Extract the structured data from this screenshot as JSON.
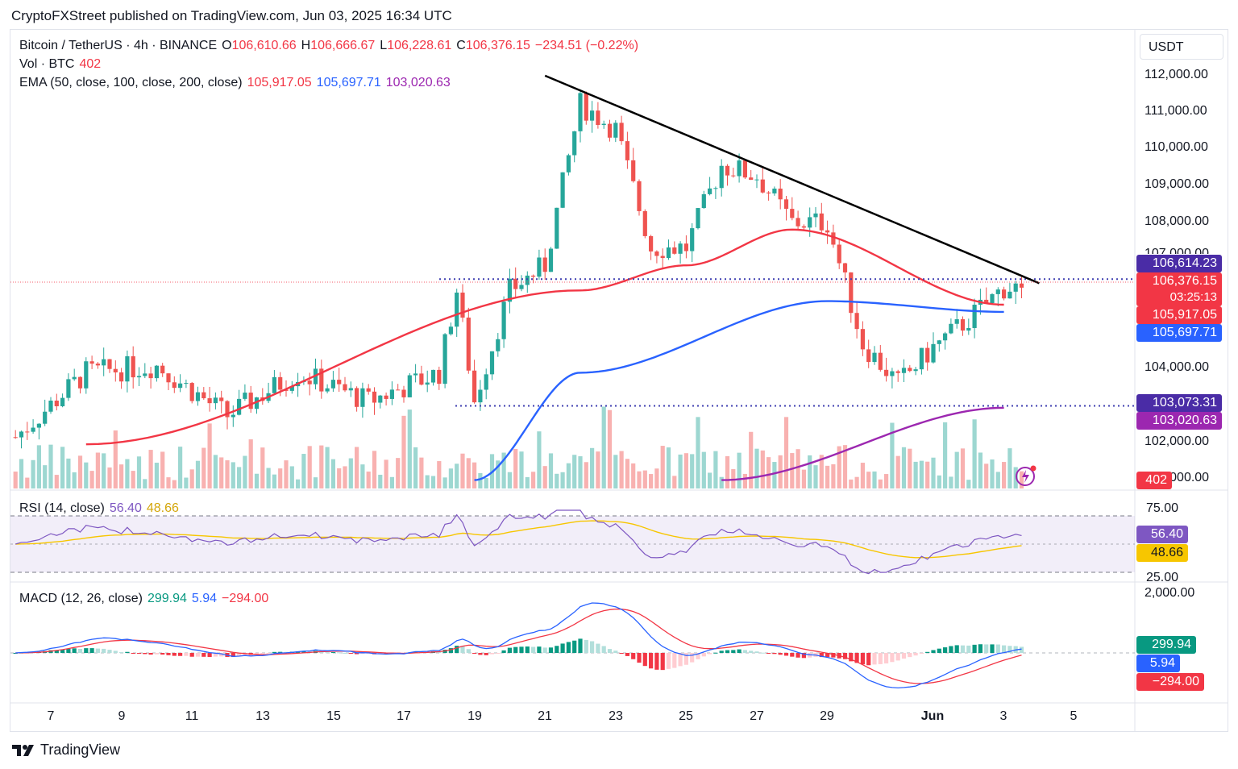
{
  "header": {
    "published": "CryptoFXStreet published on TradingView.com, Jun 03, 2025 16:34 UTC"
  },
  "legend": {
    "symbol": "Bitcoin / TetherUS · 4h · BINANCE",
    "o_label": "O",
    "o": "106,610.66",
    "h_label": "H",
    "h": "106,666.67",
    "l_label": "L",
    "l": "106,228.61",
    "c_label": "C",
    "c": "106,376.15",
    "change": "−234.51 (−0.22%)",
    "vol_label": "Vol · BTC",
    "vol": "402",
    "ema_label": "EMA (50, close, 100, close, 200, close)",
    "ema50": "105,917.05",
    "ema100": "105,697.71",
    "ema200": "103,020.63",
    "rsi_label": "RSI (14, close)",
    "rsi": "56.40",
    "rsi_ma": "48.66",
    "macd_label": "MACD (12, 26, close)",
    "macd_hist": "299.94",
    "macd": "5.94",
    "macd_signal": "−294.00"
  },
  "price_axis": {
    "currency": "USDT",
    "ticks": [
      "112,000.00",
      "111,000.00",
      "110,000.00",
      "109,000.00",
      "108,000.00",
      "104,000.00",
      "102,000.00"
    ],
    "partial_ticks": [
      "107,000.00",
      "101,000.00"
    ],
    "tags": {
      "resistance": "106,614.23",
      "last": "106,376.15",
      "countdown": "03:25:13",
      "ema50": "105,917.05",
      "ema100": "105,697.71",
      "support": "103,073.31",
      "ema200": "103,020.63",
      "volume": "402"
    }
  },
  "rsi_axis": {
    "ticks": [
      "75.00",
      "25.00"
    ],
    "tags": {
      "rsi": "56.40",
      "rsi_ma": "48.66"
    }
  },
  "macd_axis": {
    "ticks": [
      "2,000.00"
    ],
    "tags": {
      "hist": "299.94",
      "macd": "5.94",
      "signal": "−294.00"
    }
  },
  "time_axis": {
    "labels": [
      "7",
      "9",
      "11",
      "13",
      "15",
      "17",
      "19",
      "21",
      "23",
      "25",
      "27",
      "29",
      "Jun",
      "3",
      "5"
    ]
  },
  "footer": {
    "brand": "TradingView"
  },
  "colors": {
    "up": "#26a69a",
    "down": "#ef5350",
    "ema50": "#f23645",
    "ema100": "#2962ff",
    "ema200": "#9c27b0",
    "rsi": "#7e57c2",
    "rsi_ma": "#f7c600",
    "level": "#3f3fb0"
  },
  "chart_data": {
    "type": "candlestick",
    "symbol": "BTC/USDT",
    "timeframe": "4h",
    "ylim": [
      100900,
      112500
    ],
    "last_close": 106376.15,
    "levels": [
      106614.23,
      103073.31
    ],
    "trendline": {
      "from": {
        "date": "May 21",
        "price": 112300
      },
      "to": {
        "date": "Jun 4",
        "price": 106500
      }
    },
    "anchors": [
      {
        "date": "May 6",
        "price": 102200
      },
      {
        "date": "May 8",
        "price": 104000
      },
      {
        "date": "May 10",
        "price": 104200
      },
      {
        "date": "May 12",
        "price": 102800
      },
      {
        "date": "May 14",
        "price": 104000
      },
      {
        "date": "May 16",
        "price": 103200
      },
      {
        "date": "May 18",
        "price": 104000
      },
      {
        "date": "May 18",
        "price": 106300
      },
      {
        "date": "May 19",
        "price": 103200
      },
      {
        "date": "May 20",
        "price": 106300
      },
      {
        "date": "May 21",
        "price": 107000
      },
      {
        "date": "May 22",
        "price": 111500
      },
      {
        "date": "May 23",
        "price": 110800
      },
      {
        "date": "May 24",
        "price": 107500
      },
      {
        "date": "May 25",
        "price": 107500
      },
      {
        "date": "May 26",
        "price": 109800
      },
      {
        "date": "May 27",
        "price": 109500
      },
      {
        "date": "May 28",
        "price": 108200
      },
      {
        "date": "May 29",
        "price": 108200
      },
      {
        "date": "May 30",
        "price": 104800
      },
      {
        "date": "May 31",
        "price": 103700
      },
      {
        "date": "Jun 1",
        "price": 104700
      },
      {
        "date": "Jun 2",
        "price": 105500
      },
      {
        "date": "Jun 3",
        "price": 106376
      }
    ],
    "ema": {
      "ema50": [
        [
          102000,
          "May 8"
        ],
        [
          106300,
          "May 22"
        ],
        [
          107000,
          "May 25"
        ],
        [
          108000,
          "May 28"
        ],
        [
          105900,
          "Jun 3"
        ]
      ],
      "ema100": [
        [
          101000,
          "May 19"
        ],
        [
          104000,
          "May 22"
        ],
        [
          106000,
          "May 29"
        ],
        [
          105700,
          "Jun 3"
        ]
      ],
      "ema200": [
        [
          101000,
          "May 26"
        ],
        [
          103020,
          "Jun 3"
        ]
      ]
    },
    "rsi": {
      "ylim": [
        20,
        80
      ],
      "last": 56.4,
      "ma_last": 48.66
    },
    "macd": {
      "last_hist": 299.94,
      "last_macd": 5.94,
      "last_signal": -294.0
    }
  }
}
